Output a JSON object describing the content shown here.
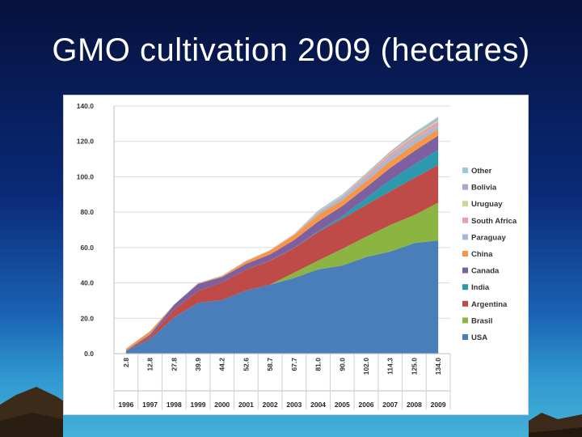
{
  "slide": {
    "title": "GMO cultivation 2009 (hectares)"
  },
  "chart_data": {
    "type": "area",
    "stacked": true,
    "title": "",
    "xlabel": "",
    "ylabel": "",
    "ylim": [
      0,
      140
    ],
    "ytick_labels": [
      "0.0",
      "20.0",
      "40.0",
      "60.0",
      "80.0",
      "100.0",
      "120.0",
      "140.0"
    ],
    "grid": true,
    "legend_position": "right",
    "categories": [
      "1996",
      "1997",
      "1998",
      "1999",
      "2000",
      "2001",
      "2002",
      "2003",
      "2004",
      "2005",
      "2006",
      "2007",
      "2008",
      "2009"
    ],
    "totals": [
      "2.8",
      "12.8",
      "27.8",
      "39.9",
      "44.2",
      "52.6",
      "58.7",
      "67.7",
      "81.0",
      "90.0",
      "102.0",
      "114.3",
      "125.0",
      "134.0"
    ],
    "series": [
      {
        "name": "USA",
        "color": "#4a7ebb",
        "values": [
          1.5,
          8.1,
          20.5,
          28.7,
          30.3,
          35.7,
          39.0,
          42.8,
          47.6,
          49.8,
          54.6,
          57.7,
          62.5,
          64.0
        ]
      },
      {
        "name": "Brasil",
        "color": "#8bb443",
        "values": [
          0,
          0,
          0,
          0,
          0,
          0,
          0,
          3.0,
          5.0,
          9.4,
          11.5,
          15.0,
          15.8,
          21.4
        ]
      },
      {
        "name": "Argentina",
        "color": "#be4b48",
        "values": [
          0.1,
          1.4,
          4.3,
          6.7,
          10.0,
          11.8,
          13.5,
          13.9,
          16.2,
          17.1,
          18.0,
          19.1,
          21.0,
          21.3
        ]
      },
      {
        "name": "India",
        "color": "#2c9aad",
        "values": [
          0,
          0,
          0,
          0,
          0,
          0,
          0.1,
          0.1,
          0.5,
          1.3,
          3.8,
          6.2,
          7.6,
          8.4
        ]
      },
      {
        "name": "Canada",
        "color": "#7d60a0",
        "values": [
          0.1,
          1.3,
          2.8,
          4.0,
          3.0,
          3.2,
          3.5,
          4.4,
          5.4,
          5.8,
          6.1,
          7.0,
          7.6,
          8.2
        ]
      },
      {
        "name": "China",
        "color": "#f79646",
        "values": [
          1.1,
          1.8,
          0.0,
          0.3,
          0.5,
          1.5,
          2.1,
          2.8,
          3.7,
          3.3,
          3.5,
          3.8,
          3.8,
          3.7
        ]
      },
      {
        "name": "Paraguay",
        "color": "#a5b8d9",
        "values": [
          0,
          0,
          0,
          0,
          0,
          0,
          0,
          0.1,
          1.2,
          1.8,
          2.0,
          2.6,
          2.7,
          2.2
        ]
      },
      {
        "name": "South Africa",
        "color": "#e6a3a2",
        "values": [
          0,
          0,
          0.1,
          0.1,
          0.2,
          0.2,
          0.3,
          0.4,
          0.5,
          0.5,
          1.4,
          1.8,
          1.8,
          2.1
        ]
      },
      {
        "name": "Uruguay",
        "color": "#c6da9c",
        "values": [
          0,
          0,
          0,
          0,
          0,
          0.1,
          0.1,
          0.1,
          0.3,
          0.3,
          0.4,
          0.5,
          0.7,
          0.8
        ]
      },
      {
        "name": "Bolivia",
        "color": "#b2a2c7",
        "values": [
          0,
          0,
          0,
          0,
          0,
          0,
          0,
          0,
          0,
          0.1,
          0.5,
          0.6,
          0.6,
          0.8
        ]
      },
      {
        "name": "Other",
        "color": "#9ccbd8",
        "values": [
          0,
          0.2,
          0.1,
          0.1,
          0.2,
          0.1,
          0.1,
          0.1,
          0.6,
          0.6,
          0.2,
          0.0,
          0.9,
          1.1
        ]
      }
    ]
  }
}
